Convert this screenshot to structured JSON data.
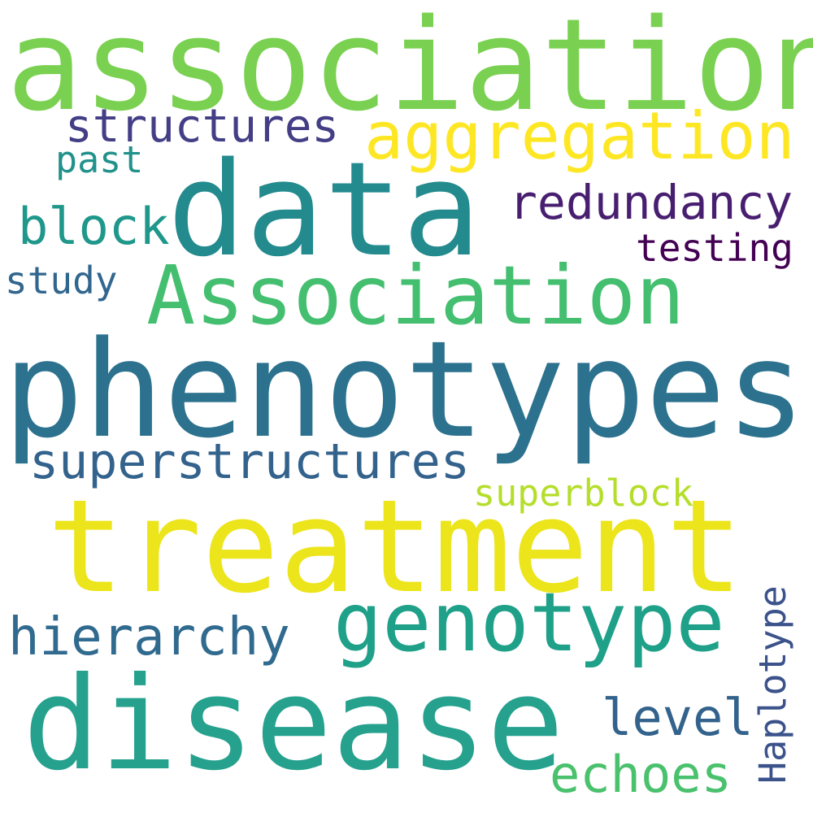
{
  "words": {
    "association": {
      "text": "association",
      "color": "#7ad151"
    },
    "aggregation": {
      "text": "aggregation",
      "color": "#fde725"
    },
    "structures": {
      "text": "structures",
      "color": "#433e85"
    },
    "past": {
      "text": "past",
      "color": "#21918c"
    },
    "data": {
      "text": "data",
      "color": "#238a8d"
    },
    "redundancy": {
      "text": "redundancy",
      "color": "#481f70"
    },
    "block": {
      "text": "block",
      "color": "#1f978b"
    },
    "testing": {
      "text": "testing",
      "color": "#440154"
    },
    "study": {
      "text": "study",
      "color": "#31668e"
    },
    "Association": {
      "text": "Association",
      "color": "#44bf70"
    },
    "phenotypes": {
      "text": "phenotypes",
      "color": "#2c728e"
    },
    "superstructures": {
      "text": "superstructures",
      "color": "#33638d"
    },
    "superblock": {
      "text": "superblock",
      "color": "#b5de2b"
    },
    "treatment": {
      "text": "treatment",
      "color": "#ece51b"
    },
    "genotype": {
      "text": "genotype",
      "color": "#1fa088"
    },
    "hierarchy": {
      "text": "hierarchy",
      "color": "#306a8e"
    },
    "disease": {
      "text": "disease",
      "color": "#25a18e"
    },
    "level": {
      "text": "level",
      "color": "#33638d"
    },
    "echoes": {
      "text": "echoes",
      "color": "#4ac16d"
    },
    "Haplotype": {
      "text": "Haplotype",
      "color": "#3b528b"
    }
  }
}
